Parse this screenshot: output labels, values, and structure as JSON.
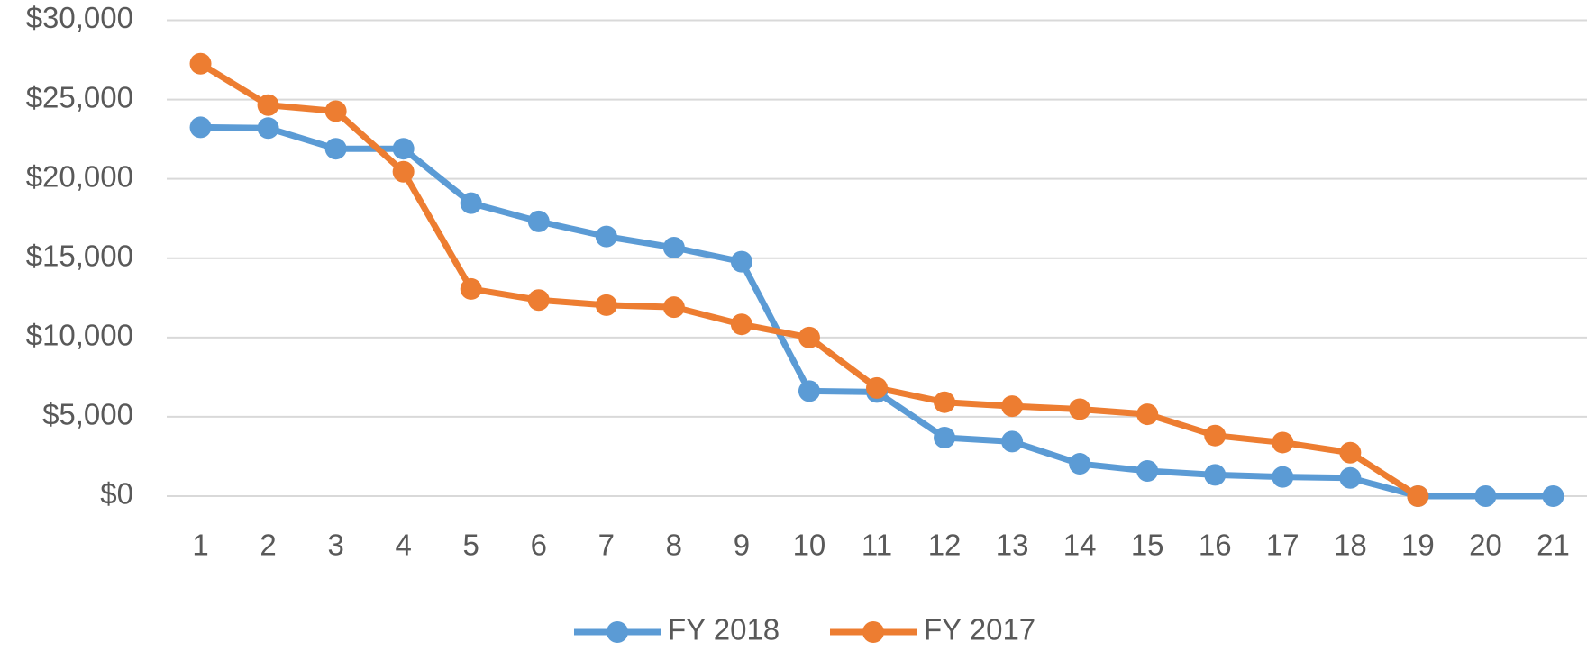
{
  "chart_data": {
    "type": "line",
    "categories": [
      1,
      2,
      3,
      4,
      5,
      6,
      7,
      8,
      9,
      10,
      11,
      12,
      13,
      14,
      15,
      16,
      17,
      18,
      19,
      20,
      21
    ],
    "series": [
      {
        "name": "FY 2018",
        "color": "#5b9bd5",
        "values": [
          23250,
          23200,
          21900,
          21900,
          18470,
          17320,
          16370,
          15670,
          14780,
          6620,
          6560,
          3690,
          3440,
          2040,
          1590,
          1340,
          1210,
          1150,
          0,
          0,
          0
        ]
      },
      {
        "name": "FY 2017",
        "color": "#ed7d31",
        "values": [
          27260,
          24650,
          24270,
          20450,
          13060,
          12360,
          12040,
          11910,
          10830,
          10000,
          6820,
          5920,
          5670,
          5480,
          5160,
          3820,
          3380,
          2740,
          0,
          null,
          null
        ]
      }
    ],
    "ylim": [
      0,
      30000
    ],
    "yticks": [
      {
        "value": 0,
        "label": "$0"
      },
      {
        "value": 5000,
        "label": "$5,000"
      },
      {
        "value": 10000,
        "label": "$10,000"
      },
      {
        "value": 15000,
        "label": "$15,000"
      },
      {
        "value": 20000,
        "label": "$20,000"
      },
      {
        "value": 25000,
        "label": "$25,000"
      },
      {
        "value": 30000,
        "label": "$30,000"
      }
    ],
    "grid": true,
    "legend": "bottom"
  }
}
